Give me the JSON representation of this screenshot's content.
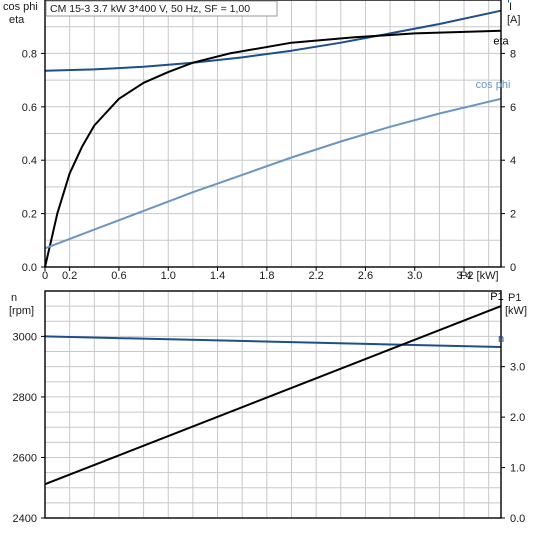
{
  "chart_data": [
    {
      "type": "line",
      "title": "CM 15-3   3.7 kW   3*400 V, 50 Hz, SF = 1,00",
      "left_axis_label": [
        "cos phi",
        "eta"
      ],
      "right_axis_label": [
        "I",
        "[A]"
      ],
      "x_axis_label": "P2 [kW]",
      "x_range": [
        0,
        3.7
      ],
      "x_ticks": [
        0,
        0.2,
        0.6,
        1.0,
        1.4,
        1.8,
        2.2,
        2.6,
        3.0,
        3.4
      ],
      "x_tick_labels": [
        "0",
        "0.2",
        "0.6",
        "1.0",
        "1.4",
        "1.8",
        "2.2",
        "2.6",
        "3.0",
        "3.4"
      ],
      "left_range": [
        0,
        1.0
      ],
      "left_ticks": [
        0,
        0.2,
        0.4,
        0.6,
        0.8
      ],
      "left_tick_labels": [
        "0.0",
        "0.2",
        "0.4",
        "0.6",
        "0.8"
      ],
      "right_range": [
        0,
        10
      ],
      "right_ticks": [
        0,
        2,
        4,
        6,
        8
      ],
      "right_tick_labels": [
        "0",
        "2",
        "4",
        "6",
        "8"
      ],
      "grid": true,
      "series": [
        {
          "name": "I",
          "axis": "right",
          "color": "#1f4e8c",
          "x": [
            0,
            0.4,
            0.8,
            1.2,
            1.6,
            2.0,
            2.4,
            2.8,
            3.2,
            3.7
          ],
          "y": [
            7.35,
            7.4,
            7.5,
            7.65,
            7.85,
            8.1,
            8.4,
            8.75,
            9.1,
            9.6
          ]
        },
        {
          "name": "eta",
          "axis": "left",
          "color": "#000000",
          "x": [
            0,
            0.05,
            0.1,
            0.2,
            0.3,
            0.4,
            0.6,
            0.8,
            1.0,
            1.2,
            1.5,
            2.0,
            2.5,
            3.0,
            3.7
          ],
          "y": [
            0,
            0.1,
            0.2,
            0.35,
            0.45,
            0.53,
            0.63,
            0.69,
            0.73,
            0.765,
            0.8,
            0.84,
            0.86,
            0.875,
            0.885
          ]
        },
        {
          "name": "cos phi",
          "axis": "left",
          "color": "#6a96c0",
          "x": [
            0,
            0.4,
            0.8,
            1.2,
            1.6,
            2.0,
            2.4,
            2.8,
            3.2,
            3.7
          ],
          "y": [
            0.07,
            0.14,
            0.21,
            0.28,
            0.345,
            0.41,
            0.47,
            0.525,
            0.575,
            0.63
          ]
        }
      ]
    },
    {
      "type": "line",
      "left_axis_label": [
        "n",
        "[rpm]"
      ],
      "right_axis_label": [
        "P1",
        "[kW]"
      ],
      "x_range": [
        0,
        3.7
      ],
      "x_ticks": [
        0,
        0.2,
        0.6,
        1.0,
        1.4,
        1.8,
        2.2,
        2.6,
        3.0,
        3.4
      ],
      "left_range": [
        2400,
        3150
      ],
      "left_ticks": [
        2400,
        2600,
        2800,
        3000
      ],
      "left_tick_labels": [
        "2400",
        "2600",
        "2800",
        "3000"
      ],
      "right_range": [
        0,
        4.5
      ],
      "right_ticks": [
        0,
        1,
        2,
        3
      ],
      "right_tick_labels": [
        "0.0",
        "1.0",
        "2.0",
        "3.0"
      ],
      "grid": true,
      "series": [
        {
          "name": "n",
          "axis": "left",
          "color": "#1f4e8c",
          "x": [
            0,
            3.7
          ],
          "y": [
            3000,
            2965
          ]
        },
        {
          "name": "P1",
          "axis": "right",
          "color": "#000000",
          "x": [
            0,
            3.7
          ],
          "y": [
            0.67,
            4.2
          ]
        }
      ]
    }
  ]
}
